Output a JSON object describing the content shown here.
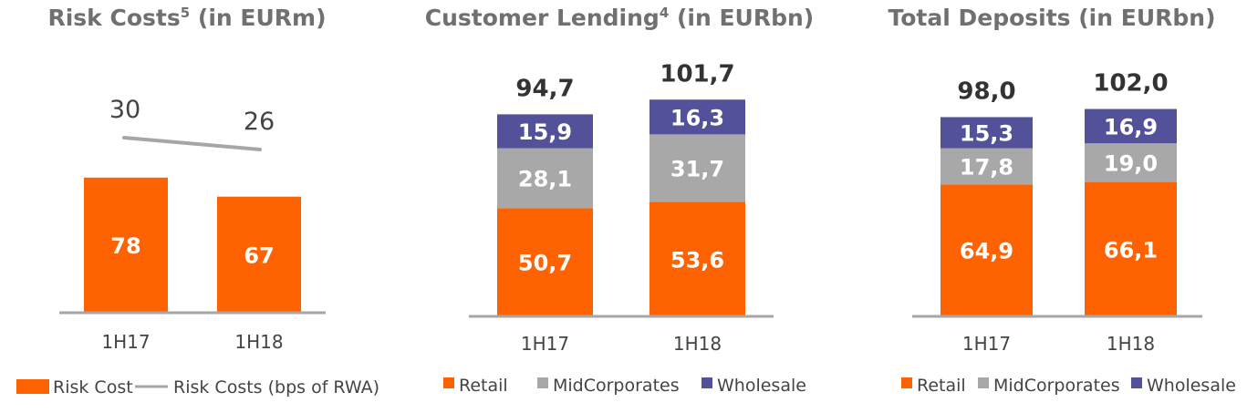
{
  "colors": {
    "orange": "#FF6200",
    "grey": "#A8A8A8",
    "purple": "#525199",
    "axis": "#A6A6A6",
    "line": "#A6A6A6"
  },
  "chart_data": [
    {
      "type": "bar",
      "title": "Risk Costs",
      "title_sup": "5",
      "title_suffix": " (in EURm)",
      "categories": [
        "1H17",
        "1H18"
      ],
      "series": [
        {
          "name": "Risk Cost",
          "values": [
            78,
            67
          ],
          "labels": [
            "78",
            "67"
          ],
          "color_key": "orange"
        }
      ],
      "line_series": {
        "name": "Risk Costs (bps of RWA)",
        "values": [
          30,
          26
        ],
        "labels": [
          "30",
          "26"
        ],
        "color_key": "line"
      },
      "ylim": [
        0,
        100
      ],
      "grid": false,
      "legend": [
        {
          "label": "Risk Cost",
          "marker": "square",
          "color_key": "orange"
        },
        {
          "label": "Risk Costs (bps of RWA)",
          "marker": "line",
          "color_key": "line"
        }
      ]
    },
    {
      "type": "bar",
      "stacked": true,
      "title": "Customer Lending",
      "title_sup": "4",
      "title_suffix": " (in EURbn)",
      "categories": [
        "1H17",
        "1H18"
      ],
      "series": [
        {
          "name": "Retail",
          "values": [
            50.7,
            53.6
          ],
          "labels": [
            "50,7",
            "53,6"
          ],
          "color_key": "orange"
        },
        {
          "name": "MidCorporates",
          "values": [
            28.1,
            31.7
          ],
          "labels": [
            "28,1",
            "31,7"
          ],
          "color_key": "grey"
        },
        {
          "name": "Wholesale",
          "values": [
            15.9,
            16.3
          ],
          "labels": [
            "15,9",
            "16,3"
          ],
          "color_key": "purple"
        }
      ],
      "totals": [
        "94,7",
        "101,7"
      ],
      "ylim": [
        0,
        125
      ],
      "grid": false,
      "legend": [
        {
          "label": "Retail",
          "marker": "square",
          "color_key": "orange"
        },
        {
          "label": "MidCorporates",
          "marker": "square",
          "color_key": "grey"
        },
        {
          "label": "Wholesale",
          "marker": "square",
          "color_key": "purple"
        }
      ]
    },
    {
      "type": "bar",
      "stacked": true,
      "title": "Total Deposits (in EURbn)",
      "title_sup": "",
      "title_suffix": "",
      "categories": [
        "1H17",
        "1H18"
      ],
      "series": [
        {
          "name": "Retail",
          "values": [
            64.9,
            66.1
          ],
          "labels": [
            "64,9",
            "66,1"
          ],
          "color_key": "orange"
        },
        {
          "name": "MidCorporates",
          "values": [
            17.8,
            19.0
          ],
          "labels": [
            "17,8",
            "19,0"
          ],
          "color_key": "grey"
        },
        {
          "name": "Wholesale",
          "values": [
            15.3,
            16.9
          ],
          "labels": [
            "15,3",
            "16,9"
          ],
          "color_key": "purple"
        }
      ],
      "totals": [
        "98,0",
        "102,0"
      ],
      "ylim": [
        0,
        125
      ],
      "grid": false,
      "legend": [
        {
          "label": "Retail",
          "marker": "square",
          "color_key": "orange"
        },
        {
          "label": "MidCorporates",
          "marker": "square",
          "color_key": "grey"
        },
        {
          "label": "Wholesale",
          "marker": "square",
          "color_key": "purple"
        }
      ]
    }
  ]
}
